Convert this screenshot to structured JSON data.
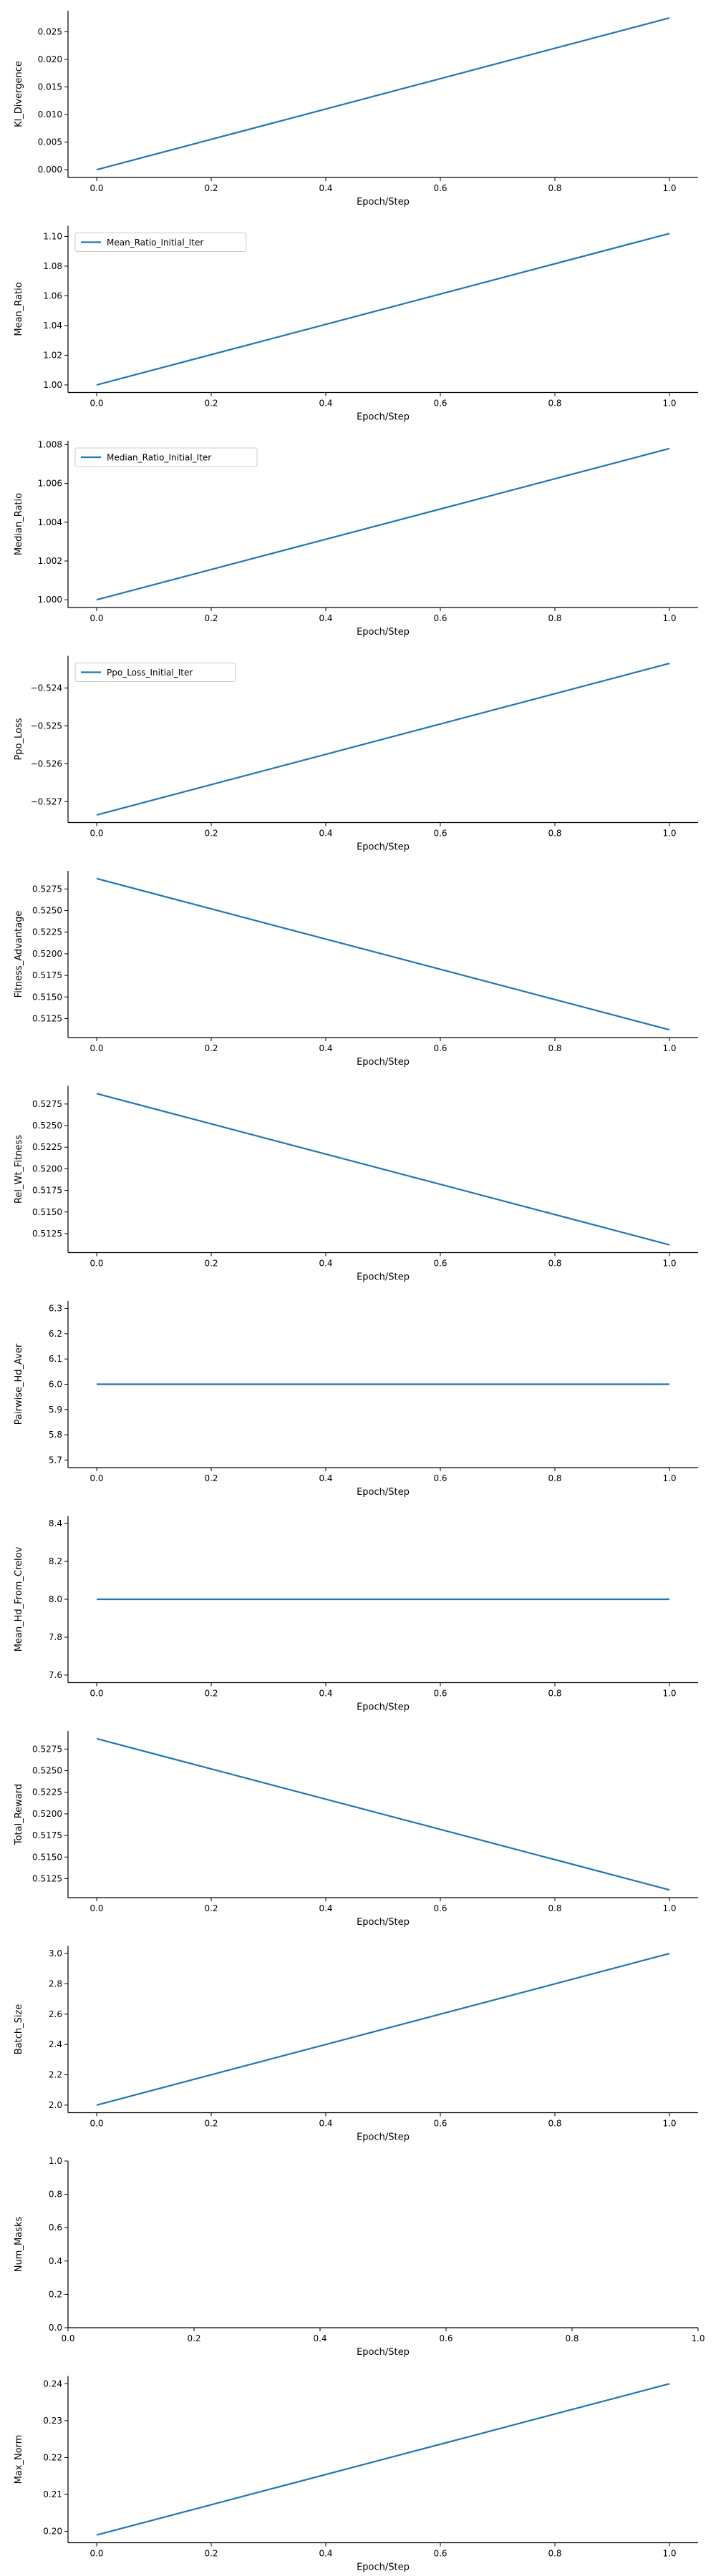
{
  "colors": {
    "line": "#1f77b4",
    "axis": "#000000",
    "legend_border": "#cccccc",
    "background": "#ffffff"
  },
  "chart_data": [
    {
      "type": "line",
      "xlabel": "Epoch/Step",
      "ylabel": "Kl_Divergence",
      "xlim": [
        -0.05,
        1.05
      ],
      "ylim": [
        -0.0014,
        0.0288
      ],
      "xticks": [
        "0.0",
        "0.2",
        "0.4",
        "0.6",
        "0.8",
        "1.0"
      ],
      "yticks": [
        "0.000",
        "0.005",
        "0.010",
        "0.015",
        "0.020",
        "0.025"
      ],
      "legend": null,
      "series": [
        {
          "x": [
            0.0,
            1.0
          ],
          "y": [
            0.0,
            0.0275
          ]
        }
      ]
    },
    {
      "type": "line",
      "xlabel": "Epoch/Step",
      "ylabel": "Mean_Ratio",
      "xlim": [
        -0.05,
        1.05
      ],
      "ylim": [
        0.9949,
        1.1072
      ],
      "xticks": [
        "0.0",
        "0.2",
        "0.4",
        "0.6",
        "0.8",
        "1.0"
      ],
      "yticks": [
        "1.00",
        "1.02",
        "1.04",
        "1.06",
        "1.08",
        "1.10"
      ],
      "legend": {
        "position": "top-left",
        "labels": [
          "Mean_Ratio_Initial_Iter"
        ]
      },
      "series": [
        {
          "name": "Mean_Ratio_Initial_Iter",
          "x": [
            0.0,
            1.0
          ],
          "y": [
            1.0,
            1.102
          ]
        }
      ]
    },
    {
      "type": "line",
      "xlabel": "Epoch/Step",
      "ylabel": "Median_Ratio",
      "xlim": [
        -0.05,
        1.05
      ],
      "ylim": [
        0.9996,
        1.0082
      ],
      "xticks": [
        "0.0",
        "0.2",
        "0.4",
        "0.6",
        "0.8",
        "1.0"
      ],
      "yticks": [
        "1.000",
        "1.002",
        "1.004",
        "1.006",
        "1.008"
      ],
      "legend": {
        "position": "top-left",
        "labels": [
          "Median_Ratio_Initial_Iter"
        ]
      },
      "series": [
        {
          "name": "Median_Ratio_Initial_Iter",
          "x": [
            0.0,
            1.0
          ],
          "y": [
            1.0,
            1.0078
          ]
        }
      ]
    },
    {
      "type": "line",
      "xlabel": "Epoch/Step",
      "ylabel": "Ppo_Loss",
      "xlim": [
        -0.05,
        1.05
      ],
      "ylim": [
        -0.52755,
        -0.52315
      ],
      "xticks": [
        "0.0",
        "0.2",
        "0.4",
        "0.6",
        "0.8",
        "1.0"
      ],
      "yticks": [
        "−0.527",
        "−0.526",
        "−0.525",
        "−0.524"
      ],
      "ytick_values": [
        -0.527,
        -0.526,
        -0.525,
        -0.524
      ],
      "legend": {
        "position": "top-left",
        "labels": [
          "Ppo_Loss_Initial_Iter"
        ]
      },
      "series": [
        {
          "name": "Ppo_Loss_Initial_Iter",
          "x": [
            0.0,
            1.0
          ],
          "y": [
            -0.52735,
            -0.52335
          ]
        }
      ]
    },
    {
      "type": "line",
      "xlabel": "Epoch/Step",
      "ylabel": "Fitness_Advantage",
      "xlim": [
        -0.05,
        1.05
      ],
      "ylim": [
        0.5103,
        0.5296
      ],
      "xticks": [
        "0.0",
        "0.2",
        "0.4",
        "0.6",
        "0.8",
        "1.0"
      ],
      "yticks": [
        "0.5125",
        "0.5150",
        "0.5175",
        "0.5200",
        "0.5225",
        "0.5250",
        "0.5275"
      ],
      "legend": null,
      "series": [
        {
          "x": [
            0.0,
            1.0
          ],
          "y": [
            0.5287,
            0.5112
          ]
        }
      ]
    },
    {
      "type": "line",
      "xlabel": "Epoch/Step",
      "ylabel": "Rel_Wt_Fitness",
      "xlim": [
        -0.05,
        1.05
      ],
      "ylim": [
        0.5103,
        0.5296
      ],
      "xticks": [
        "0.0",
        "0.2",
        "0.4",
        "0.6",
        "0.8",
        "1.0"
      ],
      "yticks": [
        "0.5125",
        "0.5150",
        "0.5175",
        "0.5200",
        "0.5225",
        "0.5250",
        "0.5275"
      ],
      "legend": null,
      "series": [
        {
          "x": [
            0.0,
            1.0
          ],
          "y": [
            0.5287,
            0.5112
          ]
        }
      ]
    },
    {
      "type": "line",
      "xlabel": "Epoch/Step",
      "ylabel": "Pairwise_Hd_Aver",
      "xlim": [
        -0.05,
        1.05
      ],
      "ylim": [
        5.67,
        6.33
      ],
      "xticks": [
        "0.0",
        "0.2",
        "0.4",
        "0.6",
        "0.8",
        "1.0"
      ],
      "yticks": [
        "5.7",
        "5.8",
        "5.9",
        "6.0",
        "6.1",
        "6.2",
        "6.3"
      ],
      "legend": null,
      "series": [
        {
          "x": [
            0.0,
            1.0
          ],
          "y": [
            6.0,
            6.0
          ]
        }
      ]
    },
    {
      "type": "line",
      "xlabel": "Epoch/Step",
      "ylabel": "Mean_Hd_From_Crelov",
      "xlim": [
        -0.05,
        1.05
      ],
      "ylim": [
        7.56,
        8.44
      ],
      "xticks": [
        "0.0",
        "0.2",
        "0.4",
        "0.6",
        "0.8",
        "1.0"
      ],
      "yticks": [
        "7.6",
        "7.8",
        "8.0",
        "8.2",
        "8.4"
      ],
      "legend": null,
      "series": [
        {
          "x": [
            0.0,
            1.0
          ],
          "y": [
            8.0,
            8.0
          ]
        }
      ]
    },
    {
      "type": "line",
      "xlabel": "Epoch/Step",
      "ylabel": "Total_Reward",
      "xlim": [
        -0.05,
        1.05
      ],
      "ylim": [
        0.5103,
        0.5296
      ],
      "xticks": [
        "0.0",
        "0.2",
        "0.4",
        "0.6",
        "0.8",
        "1.0"
      ],
      "yticks": [
        "0.5125",
        "0.5150",
        "0.5175",
        "0.5200",
        "0.5225",
        "0.5250",
        "0.5275"
      ],
      "legend": null,
      "series": [
        {
          "x": [
            0.0,
            1.0
          ],
          "y": [
            0.5287,
            0.5112
          ]
        }
      ]
    },
    {
      "type": "line",
      "xlabel": "Epoch/Step",
      "ylabel": "Batch_Size",
      "xlim": [
        -0.05,
        1.05
      ],
      "ylim": [
        1.95,
        3.05
      ],
      "xticks": [
        "0.0",
        "0.2",
        "0.4",
        "0.6",
        "0.8",
        "1.0"
      ],
      "yticks": [
        "2.0",
        "2.2",
        "2.4",
        "2.6",
        "2.8",
        "3.0"
      ],
      "legend": null,
      "series": [
        {
          "x": [
            0.0,
            1.0
          ],
          "y": [
            2.0,
            3.0
          ]
        }
      ]
    },
    {
      "type": "line",
      "xlabel": "Epoch/Step",
      "ylabel": "Num_Masks",
      "xlim": [
        0.0,
        1.0
      ],
      "ylim": [
        0.0,
        1.0
      ],
      "xticks": [
        "0.0",
        "0.2",
        "0.4",
        "0.6",
        "0.8",
        "1.0"
      ],
      "yticks": [
        "0.0",
        "0.2",
        "0.4",
        "0.6",
        "0.8",
        "1.0"
      ],
      "legend": null,
      "series": []
    },
    {
      "type": "line",
      "xlabel": "Epoch/Step",
      "ylabel": "Max_Norm",
      "xlim": [
        -0.05,
        1.05
      ],
      "ylim": [
        0.1969,
        0.2421
      ],
      "xticks": [
        "0.0",
        "0.2",
        "0.4",
        "0.6",
        "0.8",
        "1.0"
      ],
      "yticks": [
        "0.20",
        "0.21",
        "0.22",
        "0.23",
        "0.24"
      ],
      "legend": null,
      "series": [
        {
          "x": [
            0.0,
            1.0
          ],
          "y": [
            0.199,
            0.24
          ]
        }
      ]
    }
  ]
}
